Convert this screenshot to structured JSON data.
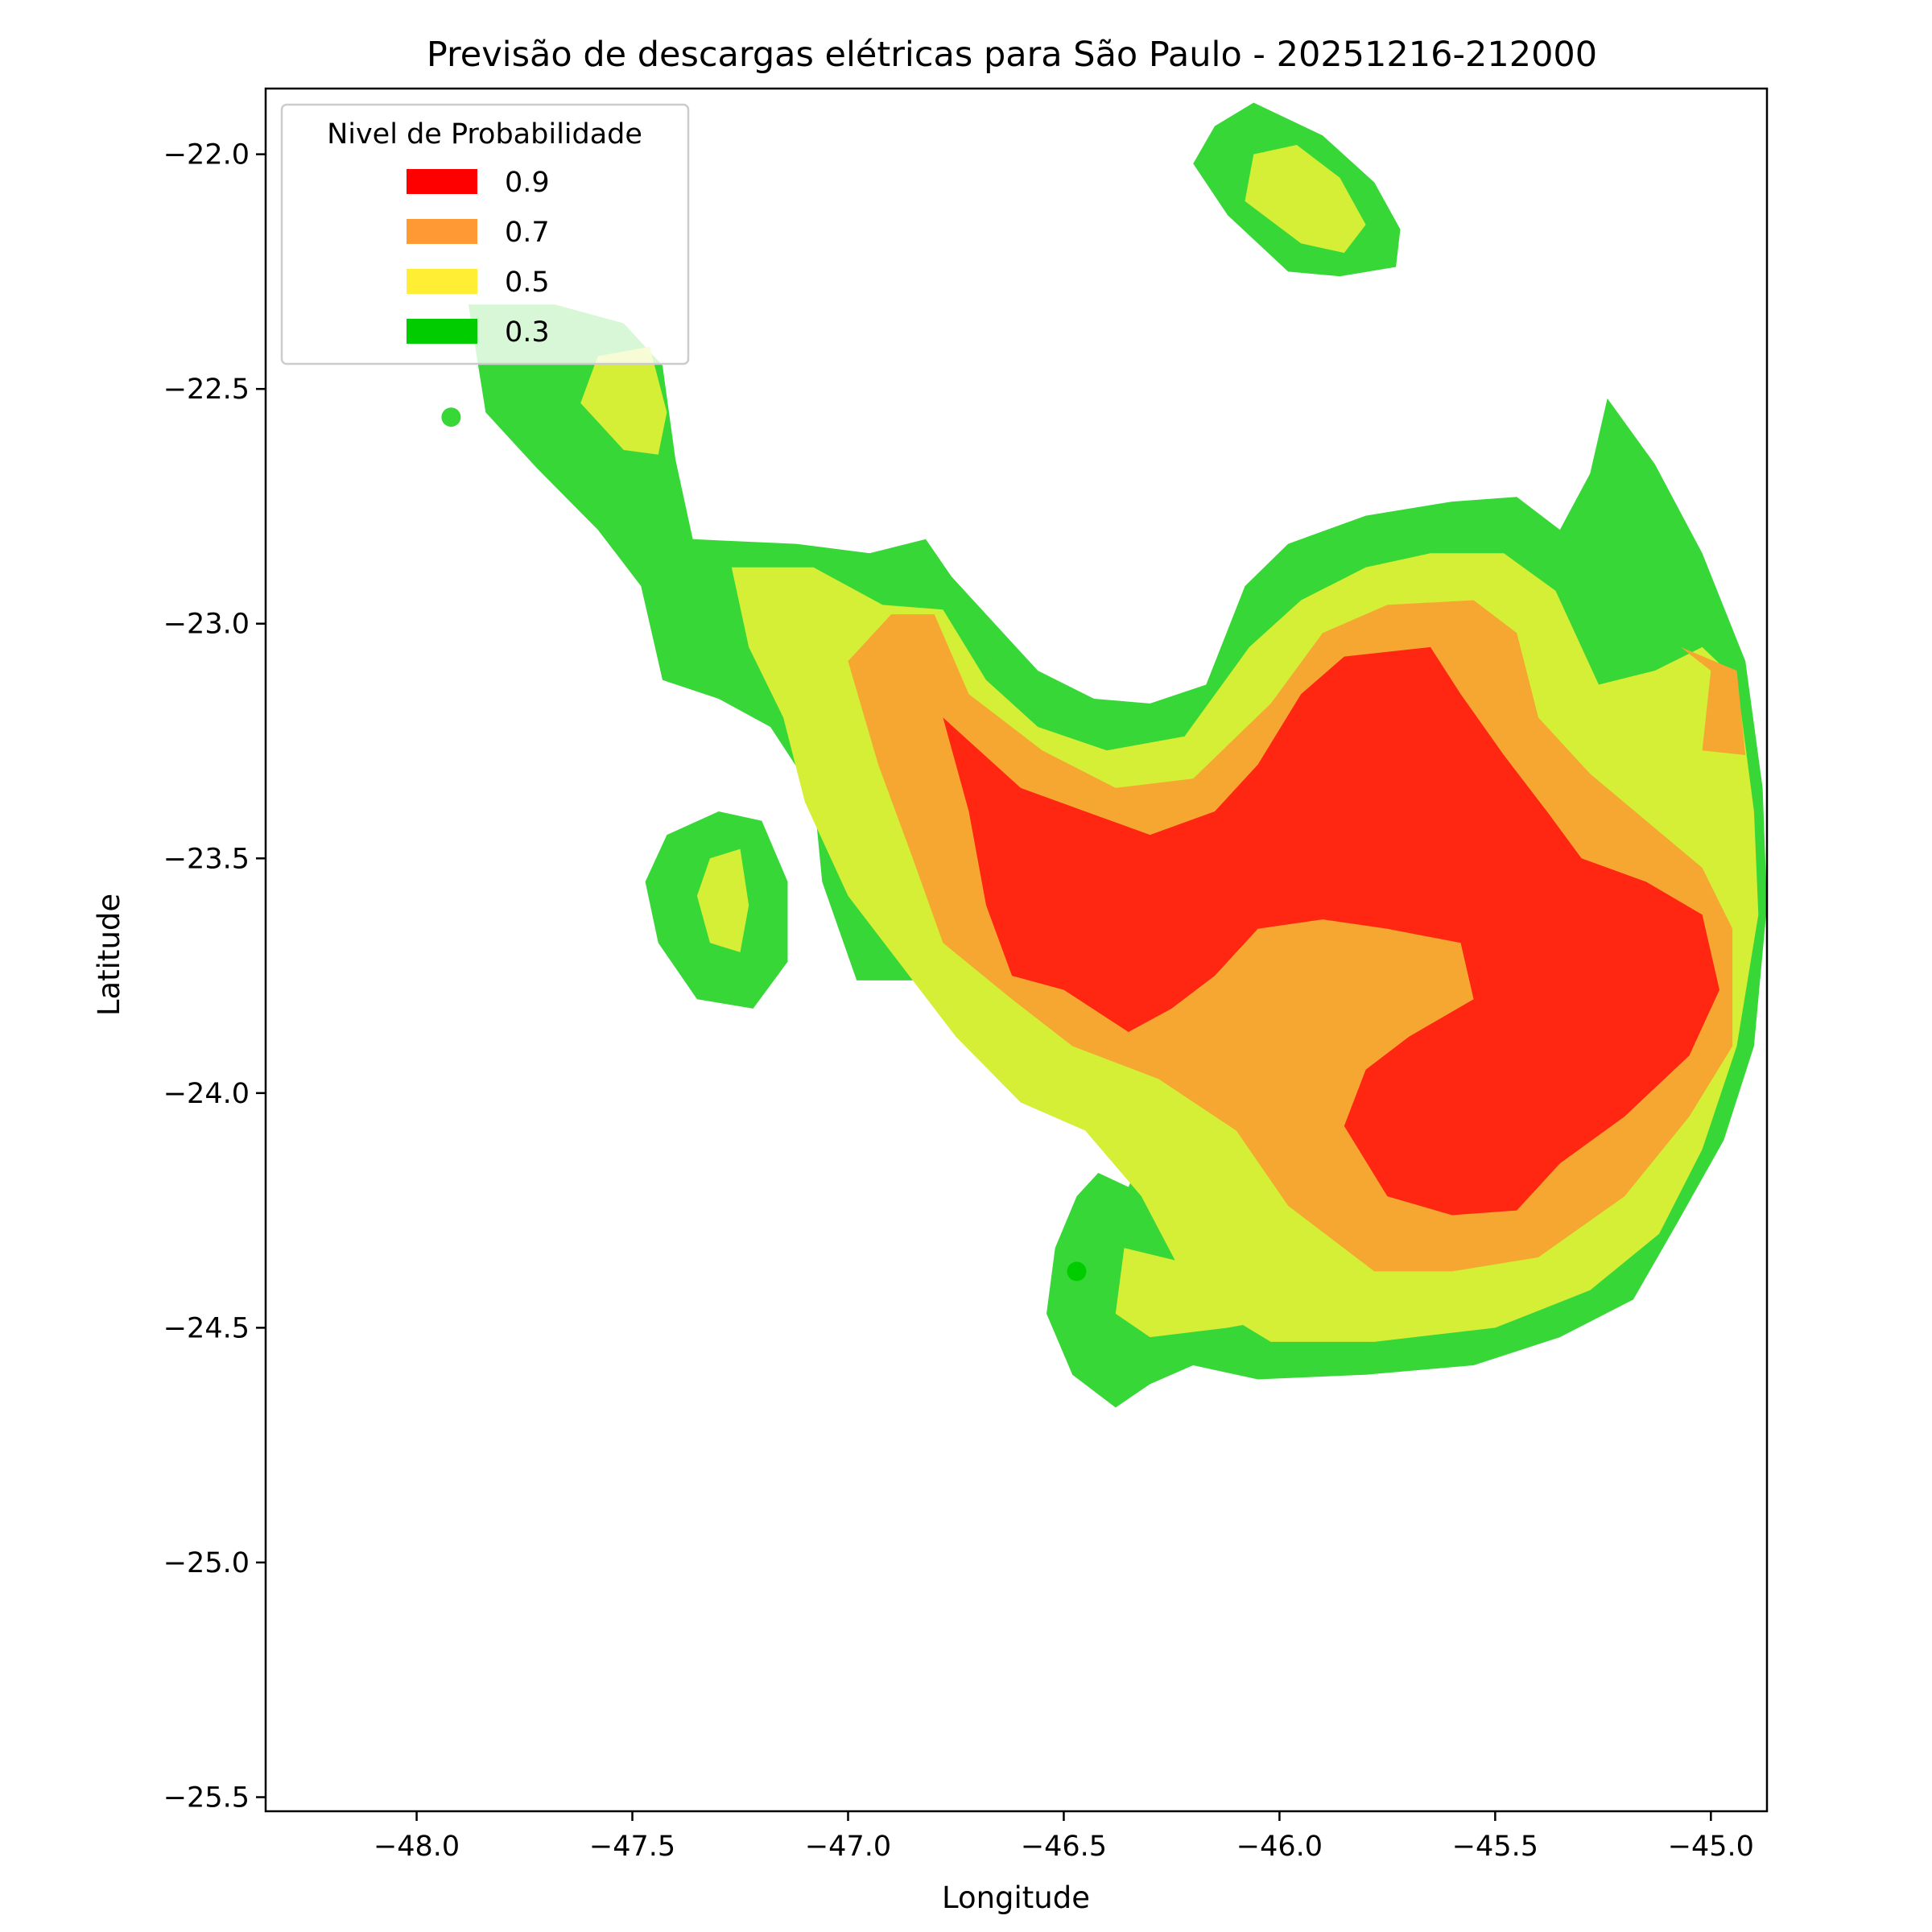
{
  "chart_data": {
    "type": "heatmap",
    "title": "Previsão de descargas elétricas para São Paulo - 20251216-212000",
    "xlabel": "Longitude",
    "ylabel": "Latitude",
    "xlim": [
      -48.35,
      -44.87
    ],
    "ylim": [
      -25.53,
      -21.86
    ],
    "xticks": [
      -48.0,
      -47.5,
      -47.0,
      -46.5,
      -46.0,
      -45.5,
      -45.0
    ],
    "xtick_labels": [
      "−48.0",
      "−47.5",
      "−47.0",
      "−46.5",
      "−46.0",
      "−45.5",
      "−45.0"
    ],
    "yticks": [
      -22.0,
      -22.5,
      -23.0,
      -23.5,
      -24.0,
      -24.5,
      -25.0,
      -25.5
    ],
    "ytick_labels": [
      "−22.0",
      "−22.5",
      "−23.0",
      "−23.5",
      "−24.0",
      "−24.5",
      "−25.0",
      "−25.5"
    ],
    "grid": false,
    "legend": {
      "title": "Nivel de Probabilidade",
      "placement": "upper-left",
      "entries": [
        {
          "label": "0.9",
          "color": "#ff0000"
        },
        {
          "label": "0.7",
          "color": "#ff9933"
        },
        {
          "label": "0.5",
          "color": "#ffee33"
        },
        {
          "label": "0.3",
          "color": "#00cc00"
        }
      ]
    },
    "levels": [
      {
        "level": "0.3",
        "color": "#38d738",
        "regions": [
          [
            [
              -47.88,
              -22.32
            ],
            [
              -47.68,
              -22.32
            ],
            [
              -47.52,
              -22.36
            ],
            [
              -47.43,
              -22.45
            ],
            [
              -47.4,
              -22.65
            ],
            [
              -47.36,
              -22.82
            ],
            [
              -47.12,
              -22.83
            ],
            [
              -46.95,
              -22.85
            ],
            [
              -46.82,
              -22.82
            ],
            [
              -46.76,
              -22.9
            ],
            [
              -46.62,
              -23.04
            ],
            [
              -46.56,
              -23.1
            ],
            [
              -46.43,
              -23.16
            ],
            [
              -46.3,
              -23.17
            ],
            [
              -46.17,
              -23.13
            ],
            [
              -46.08,
              -22.92
            ],
            [
              -45.98,
              -22.83
            ],
            [
              -45.8,
              -22.77
            ],
            [
              -45.6,
              -22.74
            ],
            [
              -45.45,
              -22.73
            ],
            [
              -45.35,
              -22.8
            ],
            [
              -45.28,
              -22.68
            ],
            [
              -45.24,
              -22.52
            ],
            [
              -45.13,
              -22.66
            ],
            [
              -45.02,
              -22.85
            ],
            [
              -44.92,
              -23.08
            ],
            [
              -44.88,
              -23.35
            ],
            [
              -44.87,
              -23.6
            ],
            [
              -44.9,
              -23.9
            ],
            [
              -44.97,
              -24.1
            ],
            [
              -45.08,
              -24.28
            ],
            [
              -45.18,
              -24.44
            ],
            [
              -45.35,
              -24.52
            ],
            [
              -45.55,
              -24.58
            ],
            [
              -45.8,
              -24.6
            ],
            [
              -46.05,
              -24.61
            ],
            [
              -46.2,
              -24.58
            ],
            [
              -46.3,
              -24.62
            ],
            [
              -46.38,
              -24.67
            ],
            [
              -46.48,
              -24.6
            ],
            [
              -46.54,
              -24.47
            ],
            [
              -46.52,
              -24.33
            ],
            [
              -46.47,
              -24.22
            ],
            [
              -46.42,
              -24.17
            ],
            [
              -46.35,
              -24.2
            ],
            [
              -46.3,
              -24.1
            ],
            [
              -46.42,
              -24.02
            ],
            [
              -46.55,
              -23.96
            ],
            [
              -46.68,
              -23.9
            ],
            [
              -46.82,
              -23.76
            ],
            [
              -46.98,
              -23.76
            ],
            [
              -47.06,
              -23.55
            ],
            [
              -47.08,
              -23.36
            ],
            [
              -47.18,
              -23.22
            ],
            [
              -47.3,
              -23.16
            ],
            [
              -47.43,
              -23.12
            ],
            [
              -47.48,
              -22.92
            ],
            [
              -47.58,
              -22.8
            ],
            [
              -47.72,
              -22.67
            ],
            [
              -47.84,
              -22.55
            ]
          ],
          [
            [
              -46.15,
              -21.94
            ],
            [
              -46.06,
              -21.89
            ],
            [
              -45.9,
              -21.96
            ],
            [
              -45.78,
              -22.06
            ],
            [
              -45.72,
              -22.16
            ],
            [
              -45.73,
              -22.24
            ],
            [
              -45.86,
              -22.26
            ],
            [
              -45.98,
              -22.25
            ],
            [
              -46.12,
              -22.13
            ],
            [
              -46.2,
              -22.02
            ]
          ],
          [
            [
              -47.42,
              -23.45
            ],
            [
              -47.3,
              -23.4
            ],
            [
              -47.2,
              -23.42
            ],
            [
              -47.14,
              -23.55
            ],
            [
              -47.14,
              -23.72
            ],
            [
              -47.22,
              -23.82
            ],
            [
              -47.35,
              -23.8
            ],
            [
              -47.44,
              -23.68
            ],
            [
              -47.47,
              -23.55
            ]
          ]
        ]
      },
      {
        "level": "0.5",
        "color": "#d5ee36",
        "regions": [
          [
            [
              -47.27,
              -22.88
            ],
            [
              -47.08,
              -22.88
            ],
            [
              -46.92,
              -22.96
            ],
            [
              -46.78,
              -22.97
            ],
            [
              -46.68,
              -23.12
            ],
            [
              -46.56,
              -23.22
            ],
            [
              -46.4,
              -23.27
            ],
            [
              -46.22,
              -23.24
            ],
            [
              -46.07,
              -23.05
            ],
            [
              -45.95,
              -22.95
            ],
            [
              -45.8,
              -22.88
            ],
            [
              -45.65,
              -22.85
            ],
            [
              -45.48,
              -22.85
            ],
            [
              -45.36,
              -22.93
            ],
            [
              -45.26,
              -23.13
            ],
            [
              -45.13,
              -23.1
            ],
            [
              -45.02,
              -23.05
            ],
            [
              -44.94,
              -23.12
            ],
            [
              -44.9,
              -23.4
            ],
            [
              -44.89,
              -23.62
            ],
            [
              -44.94,
              -23.9
            ],
            [
              -45.02,
              -24.12
            ],
            [
              -45.12,
              -24.3
            ],
            [
              -45.28,
              -24.42
            ],
            [
              -45.5,
              -24.5
            ],
            [
              -45.78,
              -24.53
            ],
            [
              -46.02,
              -24.53
            ],
            [
              -46.2,
              -24.43
            ],
            [
              -46.32,
              -24.22
            ],
            [
              -46.45,
              -24.08
            ],
            [
              -46.6,
              -24.02
            ],
            [
              -46.75,
              -23.88
            ],
            [
              -46.9,
              -23.7
            ],
            [
              -47.0,
              -23.58
            ],
            [
              -47.1,
              -23.38
            ],
            [
              -47.15,
              -23.2
            ],
            [
              -47.23,
              -23.05
            ]
          ],
          [
            [
              -47.58,
              -22.43
            ],
            [
              -47.46,
              -22.41
            ],
            [
              -47.42,
              -22.55
            ],
            [
              -47.44,
              -22.64
            ],
            [
              -47.52,
              -22.63
            ],
            [
              -47.62,
              -22.53
            ]
          ],
          [
            [
              -46.06,
              -22.0
            ],
            [
              -45.96,
              -21.98
            ],
            [
              -45.86,
              -22.05
            ],
            [
              -45.8,
              -22.15
            ],
            [
              -45.85,
              -22.21
            ],
            [
              -45.95,
              -22.19
            ],
            [
              -46.08,
              -22.1
            ]
          ],
          [
            [
              -47.32,
              -23.5
            ],
            [
              -47.25,
              -23.48
            ],
            [
              -47.23,
              -23.6
            ],
            [
              -47.25,
              -23.7
            ],
            [
              -47.32,
              -23.68
            ],
            [
              -47.35,
              -23.58
            ]
          ],
          [
            [
              -46.36,
              -24.33
            ],
            [
              -46.18,
              -24.37
            ],
            [
              -46.02,
              -24.38
            ],
            [
              -46.0,
              -24.48
            ],
            [
              -46.12,
              -24.5
            ],
            [
              -46.3,
              -24.52
            ],
            [
              -46.38,
              -24.47
            ]
          ]
        ]
      },
      {
        "level": "0.7",
        "color": "#f5a732",
        "regions": [
          [
            [
              -46.9,
              -22.98
            ],
            [
              -46.8,
              -22.98
            ],
            [
              -46.72,
              -23.15
            ],
            [
              -46.55,
              -23.27
            ],
            [
              -46.38,
              -23.35
            ],
            [
              -46.2,
              -23.33
            ],
            [
              -46.02,
              -23.17
            ],
            [
              -45.9,
              -23.02
            ],
            [
              -45.75,
              -22.96
            ],
            [
              -45.55,
              -22.95
            ],
            [
              -45.45,
              -23.02
            ],
            [
              -45.4,
              -23.2
            ],
            [
              -45.28,
              -23.32
            ],
            [
              -45.15,
              -23.42
            ],
            [
              -45.02,
              -23.52
            ],
            [
              -44.95,
              -23.65
            ],
            [
              -44.95,
              -23.9
            ],
            [
              -45.05,
              -24.05
            ],
            [
              -45.2,
              -24.22
            ],
            [
              -45.4,
              -24.35
            ],
            [
              -45.6,
              -24.38
            ],
            [
              -45.78,
              -24.38
            ],
            [
              -45.98,
              -24.24
            ],
            [
              -46.1,
              -24.08
            ],
            [
              -46.28,
              -23.97
            ],
            [
              -46.48,
              -23.9
            ],
            [
              -46.62,
              -23.8
            ],
            [
              -46.78,
              -23.68
            ],
            [
              -46.85,
              -23.5
            ],
            [
              -46.93,
              -23.3
            ],
            [
              -47.0,
              -23.08
            ]
          ],
          [
            [
              -45.07,
              -23.05
            ],
            [
              -45.0,
              -23.1
            ],
            [
              -45.02,
              -23.27
            ],
            [
              -44.92,
              -23.28
            ],
            [
              -44.94,
              -23.1
            ]
          ]
        ]
      },
      {
        "level": "0.9",
        "color": "#ff2612",
        "regions": [
          [
            [
              -46.78,
              -23.2
            ],
            [
              -46.6,
              -23.35
            ],
            [
              -46.45,
              -23.4
            ],
            [
              -46.3,
              -23.45
            ],
            [
              -46.15,
              -23.4
            ],
            [
              -46.05,
              -23.3
            ],
            [
              -45.95,
              -23.15
            ],
            [
              -45.85,
              -23.07
            ],
            [
              -45.65,
              -23.05
            ],
            [
              -45.58,
              -23.15
            ],
            [
              -45.48,
              -23.28
            ],
            [
              -45.38,
              -23.4
            ],
            [
              -45.3,
              -23.5
            ],
            [
              -45.15,
              -23.55
            ],
            [
              -45.02,
              -23.62
            ],
            [
              -44.98,
              -23.78
            ],
            [
              -45.05,
              -23.92
            ],
            [
              -45.2,
              -24.05
            ],
            [
              -45.35,
              -24.15
            ],
            [
              -45.45,
              -24.25
            ],
            [
              -45.6,
              -24.26
            ],
            [
              -45.75,
              -24.22
            ],
            [
              -45.85,
              -24.07
            ],
            [
              -45.8,
              -23.95
            ],
            [
              -45.7,
              -23.88
            ],
            [
              -45.55,
              -23.8
            ],
            [
              -45.58,
              -23.68
            ],
            [
              -45.75,
              -23.65
            ],
            [
              -45.9,
              -23.63
            ],
            [
              -46.05,
              -23.65
            ],
            [
              -46.15,
              -23.75
            ],
            [
              -46.25,
              -23.82
            ],
            [
              -46.35,
              -23.87
            ],
            [
              -46.5,
              -23.78
            ],
            [
              -46.62,
              -23.75
            ],
            [
              -46.68,
              -23.6
            ],
            [
              -46.72,
              -23.4
            ]
          ]
        ]
      }
    ],
    "points": [
      {
        "lon": -47.92,
        "lat": -22.56,
        "color": "#38d738"
      },
      {
        "lon": -46.14,
        "lat": -23.65,
        "color": "#ff2612"
      },
      {
        "lon": -46.39,
        "lat": -24.23,
        "color": "#38d738"
      },
      {
        "lon": -46.47,
        "lat": -24.38,
        "color": "#00cc00"
      }
    ]
  }
}
